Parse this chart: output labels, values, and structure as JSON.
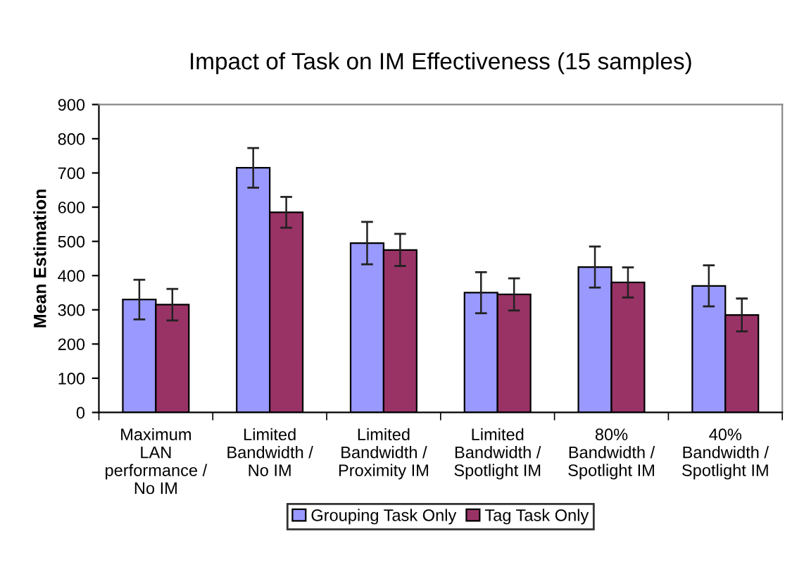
{
  "chart_data": {
    "type": "bar",
    "title": "Impact of Task on IM Effectiveness (15 samples)",
    "ylabel": "Mean Estimation",
    "categories": [
      "Maximum\nLAN\nperformance /\nNo IM",
      "Limited\nBandwidth /\nNo IM",
      "Limited\nBandwidth /\nProximity IM",
      "Limited\nBandwidth /\nSpotlight IM",
      "80%\nBandwidth /\nSpotlight IM",
      "40%\nBandwidth /\nSpotlight IM"
    ],
    "series": [
      {
        "name": "Grouping Task Only",
        "color": "#9999ff",
        "values": [
          330,
          715,
          495,
          350,
          425,
          370
        ],
        "errors": [
          58,
          58,
          62,
          60,
          60,
          60
        ]
      },
      {
        "name": "Tag Task Only",
        "color": "#993366",
        "values": [
          315,
          585,
          475,
          345,
          380,
          285
        ],
        "errors": [
          46,
          45,
          47,
          47,
          44,
          48
        ]
      }
    ],
    "ylim": [
      0,
      900
    ],
    "yticks": [
      0,
      100,
      200,
      300,
      400,
      500,
      600,
      700,
      800,
      900
    ],
    "grid": false,
    "legend": "bottom"
  }
}
